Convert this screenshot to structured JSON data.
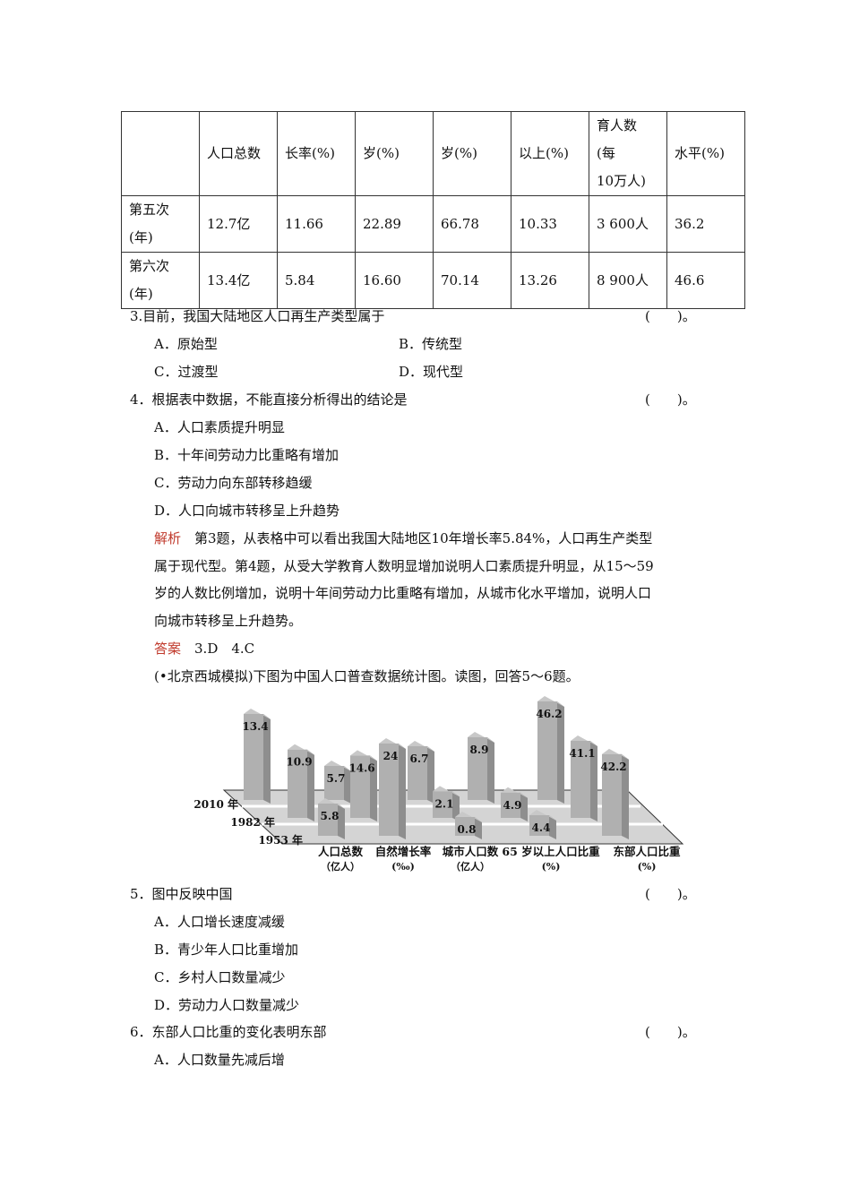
{
  "table": {
    "header": [
      "",
      "人口总数",
      "长率(%)",
      "岁(%)",
      "岁(%)",
      "以上(%)",
      "育人数\n(每\n10万人)",
      "水平(%)"
    ],
    "rows": [
      [
        "第五次\n(年)",
        "12.7亿",
        "11.66",
        "22.89",
        "66.78",
        "10.33",
        "3 600人",
        "36.2"
      ],
      [
        "第六次\n(年)",
        "13.4亿",
        "5.84",
        "16.60",
        "70.14",
        "13.26",
        "8 900人",
        "46.6"
      ]
    ]
  },
  "q3": {
    "stem": "3.目前，我国大陆地区人口再生产类型属于",
    "paren": "(　　)。",
    "options": [
      "A．原始型",
      "B．传统型",
      "C．过渡型",
      "D．现代型"
    ]
  },
  "q4": {
    "stem": "4．根据表中数据，不能直接分析得出的结论是",
    "paren": "(　　)。",
    "options": [
      "A．人口素质提升明显",
      "B．十年间劳动力比重略有增加",
      "C．劳动力向东部转移趋缓",
      "D．人口向城市转移呈上升趋势"
    ]
  },
  "analysis": {
    "label": "解析",
    "lines": [
      "　第3题，从表格中可以看出我国大陆地区10年增长率5.84%，人口再生产类型",
      "属于现代型。第4题，从受大学教育人数明显增加说明人口素质提升明显，从15～59",
      "岁的人数比例增加，说明十年间劳动力比重略有增加，从城市化水平增加，说明人口",
      "向城市转移呈上升趋势。"
    ]
  },
  "answer": {
    "label": "答案",
    "text": "　3.D　4.C"
  },
  "intro": "(•北京西城模拟)下图为中国人口普查数据统计图。读图，回答5～6题。",
  "chart_data": {
    "type": "bar",
    "categories": [
      "人口总数\n（亿人）",
      "自然增长率\n(‰)",
      "城市人口数\n（亿人）",
      "65 岁以上人口比重\n(%)",
      "东部人口比重\n(%)"
    ],
    "series": [
      {
        "name": "2010 年",
        "values": [
          13.4,
          5.7,
          6.7,
          8.9,
          46.2
        ]
      },
      {
        "name": "1982 年",
        "values": [
          10.9,
          14.6,
          2.1,
          4.9,
          41.1
        ]
      },
      {
        "name": "1953 年",
        "values": [
          5.8,
          24,
          0.8,
          4.4,
          42.2
        ]
      }
    ],
    "bar_color": "#b0b0b0"
  },
  "q5": {
    "stem": "5．图中反映中国",
    "paren": "(　　)。",
    "options": [
      "A．人口增长速度减缓",
      "B．青少年人口比重增加",
      "C．乡村人口数量减少",
      "D．劳动力人口数量减少"
    ]
  },
  "q6": {
    "stem": "6．东部人口比重的变化表明东部",
    "paren": "(　　)。",
    "options": [
      "A．人口数量先减后增"
    ]
  }
}
